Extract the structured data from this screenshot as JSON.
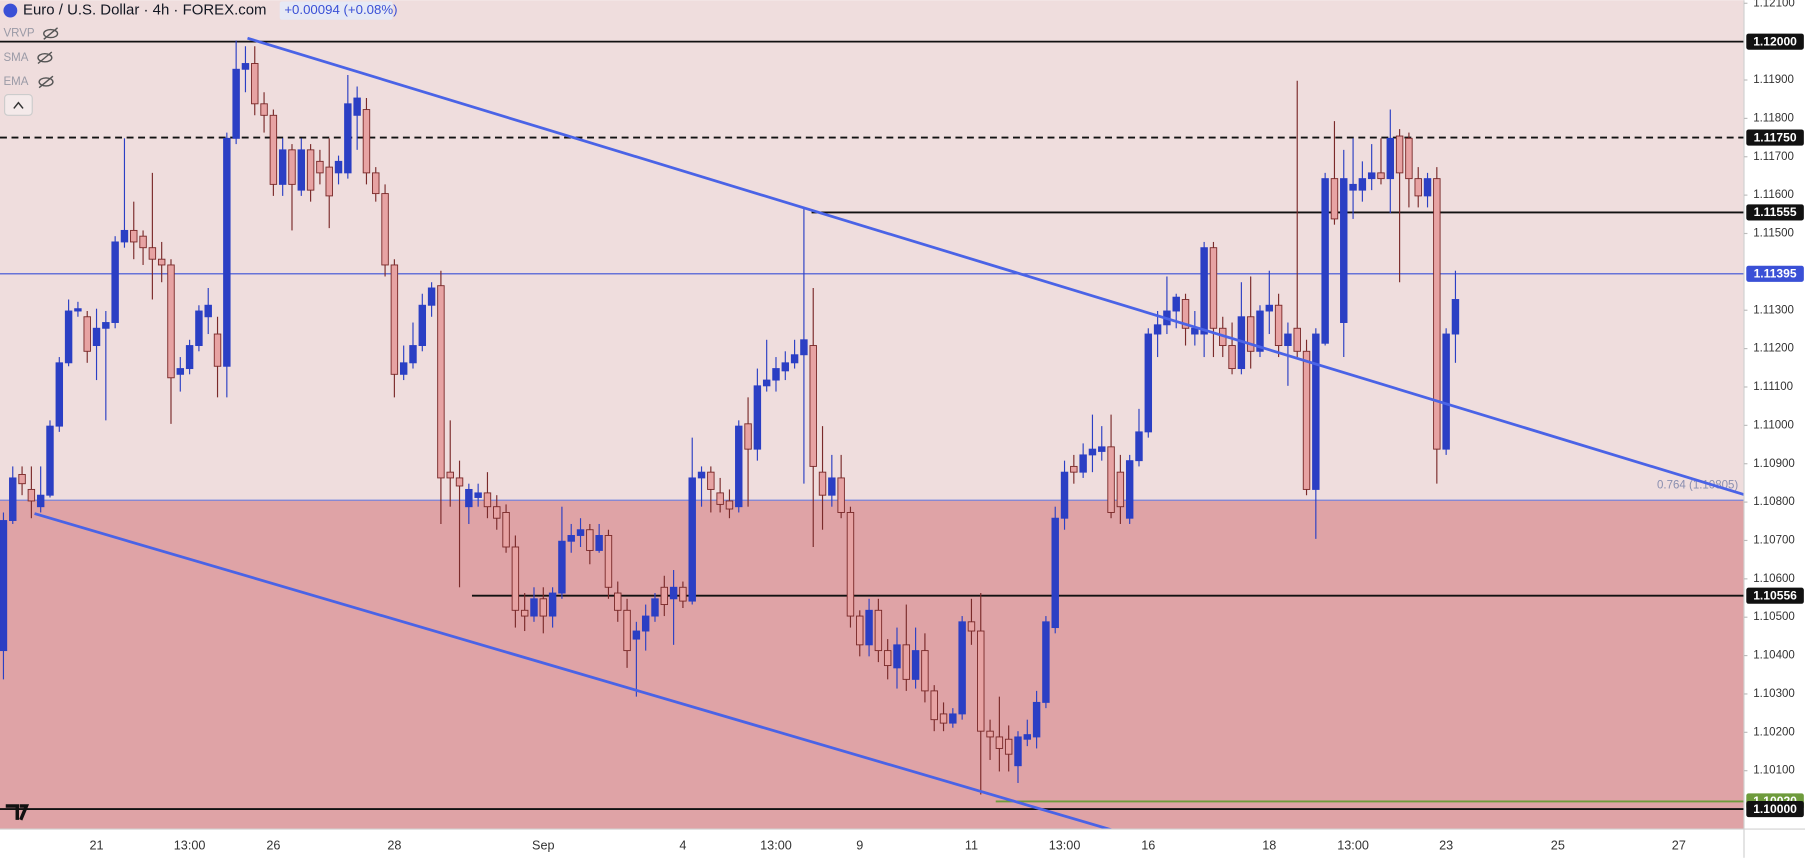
{
  "header": {
    "title": "Euro / U.S. Dollar · 4h · FOREX.com",
    "change": "+0.00094 (+0.08%)",
    "indicators": [
      "VRVP",
      "SMA",
      "EMA"
    ]
  },
  "chart_data": {
    "type": "candlestick",
    "up_color": "#2b3fc4",
    "down_color": "#e7a3a3",
    "down_edge": "#7a2a2a",
    "ylim": [
      1.09948,
      1.12108
    ],
    "yticks": [
      {
        "value": 1.121,
        "label": "1.12100"
      },
      {
        "value": 1.119,
        "label": "1.11900"
      },
      {
        "value": 1.118,
        "label": "1.11800"
      },
      {
        "value": 1.117,
        "label": "1.11700"
      },
      {
        "value": 1.116,
        "label": "1.11600"
      },
      {
        "value": 1.115,
        "label": "1.11500"
      },
      {
        "value": 1.113,
        "label": "1.11300"
      },
      {
        "value": 1.112,
        "label": "1.11200"
      },
      {
        "value": 1.111,
        "label": "1.11100"
      },
      {
        "value": 1.11,
        "label": "1.11000"
      },
      {
        "value": 1.109,
        "label": "1.10900"
      },
      {
        "value": 1.108,
        "label": "1.10800"
      },
      {
        "value": 1.107,
        "label": "1.10700"
      },
      {
        "value": 1.106,
        "label": "1.10600"
      },
      {
        "value": 1.105,
        "label": "1.10500"
      },
      {
        "value": 1.104,
        "label": "1.10400"
      },
      {
        "value": 1.103,
        "label": "1.10300"
      },
      {
        "value": 1.102,
        "label": "1.10200"
      },
      {
        "value": 1.101,
        "label": "1.10100"
      }
    ],
    "levels": [
      {
        "value": 1.12,
        "label": "1.12000",
        "color": "#111111",
        "style": "solid"
      },
      {
        "value": 1.1175,
        "label": "1.11750",
        "color": "#111111",
        "style": "dashed"
      },
      {
        "value": 1.11555,
        "label": "1.11555",
        "color": "#111111",
        "style": "solid"
      },
      {
        "value": 1.11395,
        "label": "1.11395",
        "color": "#3a50d6",
        "style": "solid"
      },
      {
        "value": 1.10556,
        "label": "1.10556",
        "color": "#111111",
        "style": "solid"
      },
      {
        "value": 1.1002,
        "label": "1.10020",
        "color": "#6e9b3c",
        "style": "solid"
      },
      {
        "value": 1.1,
        "label": "1.10000",
        "color": "#111111",
        "style": "solid"
      }
    ],
    "zone": {
      "value": 1.10805,
      "label": "0.764 (1.10805)",
      "color": "#dfa3a6",
      "above_color": "#efdddd"
    },
    "categories": [
      null,
      null,
      null,
      null,
      null,
      null,
      null,
      null,
      null,
      null,
      "21",
      null,
      null,
      null,
      null,
      null,
      null,
      null,
      null,
      null,
      "13:00",
      null,
      null,
      null,
      null,
      null,
      null,
      null,
      null,
      "26",
      null,
      null,
      null,
      null,
      null,
      null,
      null,
      null,
      null,
      null,
      null,
      null,
      "28",
      null,
      null,
      null,
      null,
      null,
      null,
      null,
      null,
      null,
      null,
      null,
      null,
      null,
      null,
      null,
      "Sep",
      null,
      null,
      null,
      null,
      null,
      null,
      null,
      null,
      null,
      null,
      null,
      null,
      null,
      null,
      "4",
      null,
      null,
      null,
      null,
      null,
      null,
      null,
      null,
      null,
      "13:00",
      null,
      null,
      null,
      null,
      null,
      null,
      null,
      null,
      "9",
      null,
      null,
      null,
      null,
      null,
      null,
      null,
      null,
      null,
      null,
      null,
      "11",
      null,
      null,
      null,
      null,
      null,
      null,
      null,
      null,
      null,
      "13:00",
      null,
      null,
      null,
      null,
      null,
      null,
      null,
      null,
      "16",
      null,
      null,
      null,
      null,
      null,
      null,
      null,
      null,
      null,
      null,
      null,
      null,
      "18",
      null,
      null,
      null,
      null,
      null,
      null,
      null,
      null,
      "13:00",
      null,
      null,
      null,
      null,
      null,
      null,
      null,
      null,
      null,
      "23",
      null,
      null,
      null,
      null,
      null,
      null,
      null,
      null,
      null,
      null,
      null,
      "25",
      null,
      null,
      null,
      null,
      null,
      null,
      null,
      null,
      null,
      null,
      null,
      null,
      "27",
      null,
      null,
      null,
      null,
      null,
      null,
      null
    ],
    "ohlc": [
      [
        1.10413,
        1.10773,
        1.10338,
        1.10752
      ],
      [
        1.10752,
        1.10893,
        1.10743,
        1.10863
      ],
      [
        1.10872,
        1.10893,
        1.10818,
        1.10848
      ],
      [
        1.10833,
        1.10893,
        1.10758,
        1.10803
      ],
      [
        1.10788,
        1.10893,
        1.10773,
        1.10818
      ],
      [
        1.10818,
        1.11013,
        1.10812,
        1.10998
      ],
      [
        1.10998,
        1.11178,
        1.10983,
        1.11163
      ],
      [
        1.11163,
        1.11328,
        1.11154,
        1.11298
      ],
      [
        1.11298,
        1.11322,
        1.11283,
        1.11304
      ],
      [
        1.11283,
        1.11298,
        1.11163,
        1.11193
      ],
      [
        1.11208,
        1.11304,
        1.11118,
        1.11253
      ],
      [
        1.11253,
        1.11298,
        1.11013,
        1.11268
      ],
      [
        1.11268,
        1.11493,
        1.11253,
        1.11478
      ],
      [
        1.11478,
        1.11748,
        1.11463,
        1.11508
      ],
      [
        1.11508,
        1.11583,
        1.11433,
        1.11478
      ],
      [
        1.11493,
        1.11508,
        1.11418,
        1.11463
      ],
      [
        1.11463,
        1.11658,
        1.11328,
        1.11433
      ],
      [
        1.11433,
        1.11478,
        1.11373,
        1.11418
      ],
      [
        1.11418,
        1.11433,
        1.11004,
        1.11124
      ],
      [
        1.11133,
        1.11178,
        1.11088,
        1.11148
      ],
      [
        1.11148,
        1.11223,
        1.11133,
        1.11208
      ],
      [
        1.11208,
        1.11313,
        1.11193,
        1.11298
      ],
      [
        1.11283,
        1.11358,
        1.11238,
        1.11313
      ],
      [
        1.11238,
        1.11283,
        1.11073,
        1.11154
      ],
      [
        1.11154,
        1.11763,
        1.11073,
        1.11748
      ],
      [
        1.11748,
        1.12003,
        1.11733,
        1.11928
      ],
      [
        1.11928,
        1.11988,
        1.11868,
        1.11943
      ],
      [
        1.11943,
        1.11988,
        1.11808,
        1.11838
      ],
      [
        1.11838,
        1.11868,
        1.11763,
        1.11808
      ],
      [
        1.11808,
        1.11823,
        1.11598,
        1.11628
      ],
      [
        1.11628,
        1.11748,
        1.11598,
        1.11718
      ],
      [
        1.11718,
        1.11733,
        1.11508,
        1.11628
      ],
      [
        1.11613,
        1.11748,
        1.11598,
        1.11718
      ],
      [
        1.11718,
        1.11733,
        1.11583,
        1.11613
      ],
      [
        1.11688,
        1.11718,
        1.11628,
        1.11658
      ],
      [
        1.11673,
        1.11748,
        1.11514,
        1.11598
      ],
      [
        1.11658,
        1.11703,
        1.11628,
        1.11688
      ],
      [
        1.11658,
        1.11913,
        1.11643,
        1.11838
      ],
      [
        1.11808,
        1.11883,
        1.11718,
        1.11853
      ],
      [
        1.11823,
        1.11853,
        1.11628,
        1.11658
      ],
      [
        1.11658,
        1.11673,
        1.11583,
        1.11604
      ],
      [
        1.11604,
        1.11628,
        1.11388,
        1.11418
      ],
      [
        1.11418,
        1.11433,
        1.11073,
        1.11133
      ],
      [
        1.11133,
        1.11208,
        1.11118,
        1.11163
      ],
      [
        1.11163,
        1.11268,
        1.11148,
        1.11208
      ],
      [
        1.11208,
        1.11343,
        1.11193,
        1.11313
      ],
      [
        1.11313,
        1.11373,
        1.11283,
        1.11358
      ],
      [
        1.11364,
        1.11403,
        1.10743,
        1.10863
      ],
      [
        1.10878,
        1.11013,
        1.10788,
        1.10863
      ],
      [
        1.10863,
        1.10908,
        1.10578,
        1.10842
      ],
      [
        1.10788,
        1.10848,
        1.10743,
        1.10833
      ],
      [
        1.10812,
        1.10848,
        1.10788,
        1.10824
      ],
      [
        1.10824,
        1.10878,
        1.10758,
        1.10788
      ],
      [
        1.10788,
        1.10818,
        1.10728,
        1.10758
      ],
      [
        1.10773,
        1.10794,
        1.10668,
        1.10683
      ],
      [
        1.10683,
        1.10713,
        1.10473,
        1.10518
      ],
      [
        1.10518,
        1.10563,
        1.10464,
        1.10503
      ],
      [
        1.10503,
        1.10578,
        1.10488,
        1.10548
      ],
      [
        1.10548,
        1.10578,
        1.10458,
        1.10503
      ],
      [
        1.10503,
        1.10578,
        1.10473,
        1.10563
      ],
      [
        1.10563,
        1.10788,
        1.10548,
        1.10698
      ],
      [
        1.10698,
        1.10743,
        1.10668,
        1.10713
      ],
      [
        1.10713,
        1.10758,
        1.10683,
        1.10728
      ],
      [
        1.10728,
        1.10743,
        1.10638,
        1.10674
      ],
      [
        1.10674,
        1.10743,
        1.10668,
        1.10713
      ],
      [
        1.10713,
        1.10728,
        1.10548,
        1.10578
      ],
      [
        1.10563,
        1.10593,
        1.10488,
        1.10518
      ],
      [
        1.10518,
        1.10548,
        1.10368,
        1.10413
      ],
      [
        1.10443,
        1.10488,
        1.10293,
        1.10464
      ],
      [
        1.10464,
        1.10533,
        1.10413,
        1.10503
      ],
      [
        1.10503,
        1.10563,
        1.10488,
        1.10548
      ],
      [
        1.10578,
        1.10608,
        1.10503,
        1.10533
      ],
      [
        1.10548,
        1.10623,
        1.10428,
        1.10578
      ],
      [
        1.10578,
        1.10593,
        1.10524,
        1.10542
      ],
      [
        1.10542,
        1.10968,
        1.10533,
        1.10863
      ],
      [
        1.10863,
        1.10893,
        1.10788,
        1.10878
      ],
      [
        1.10878,
        1.10893,
        1.10773,
        1.10833
      ],
      [
        1.10824,
        1.10863,
        1.10773,
        1.10794
      ],
      [
        1.10803,
        1.10833,
        1.10758,
        1.10782
      ],
      [
        1.10788,
        1.11013,
        1.10773,
        1.10998
      ],
      [
        1.11004,
        1.11073,
        1.10788,
        1.10938
      ],
      [
        1.10938,
        1.11148,
        1.10908,
        1.11103
      ],
      [
        1.11103,
        1.11223,
        1.11088,
        1.11118
      ],
      [
        1.11118,
        1.11178,
        1.11088,
        1.11148
      ],
      [
        1.11142,
        1.11193,
        1.11118,
        1.11163
      ],
      [
        1.11163,
        1.11223,
        1.11148,
        1.11184
      ],
      [
        1.11184,
        1.11568,
        1.10848,
        1.11223
      ],
      [
        1.11208,
        1.11358,
        1.10683,
        1.10893
      ],
      [
        1.10878,
        1.10998,
        1.10728,
        1.10818
      ],
      [
        1.10818,
        1.10923,
        1.10788,
        1.10863
      ],
      [
        1.10863,
        1.10923,
        1.10758,
        1.10773
      ],
      [
        1.10773,
        1.10788,
        1.10473,
        1.10503
      ],
      [
        1.10503,
        1.10518,
        1.10398,
        1.10428
      ],
      [
        1.10428,
        1.10548,
        1.10398,
        1.10518
      ],
      [
        1.10518,
        1.10548,
        1.10383,
        1.10413
      ],
      [
        1.10413,
        1.10443,
        1.10338,
        1.10374
      ],
      [
        1.10368,
        1.10473,
        1.10314,
        1.10428
      ],
      [
        1.10428,
        1.10533,
        1.10308,
        1.10338
      ],
      [
        1.10338,
        1.10473,
        1.10314,
        1.10413
      ],
      [
        1.10413,
        1.10458,
        1.10278,
        1.10308
      ],
      [
        1.10308,
        1.10323,
        1.10203,
        1.10233
      ],
      [
        1.10248,
        1.10278,
        1.10203,
        1.10224
      ],
      [
        1.10224,
        1.10263,
        1.10212,
        1.10248
      ],
      [
        1.10248,
        1.10503,
        1.10233,
        1.10488
      ],
      [
        1.10488,
        1.10548,
        1.10428,
        1.10464
      ],
      [
        1.10464,
        1.10563,
        1.10038,
        1.10203
      ],
      [
        1.10203,
        1.10233,
        1.10128,
        1.10188
      ],
      [
        1.10188,
        1.10293,
        1.10098,
        1.10158
      ],
      [
        1.10182,
        1.10218,
        1.10098,
        1.10143
      ],
      [
        1.10113,
        1.10203,
        1.10068,
        1.10188
      ],
      [
        1.10182,
        1.10233,
        1.10164,
        1.10194
      ],
      [
        1.10188,
        1.10308,
        1.10158,
        1.10278
      ],
      [
        1.10278,
        1.10503,
        1.10263,
        1.10488
      ],
      [
        1.10473,
        1.10788,
        1.10458,
        1.10758
      ],
      [
        1.10758,
        1.10908,
        1.10728,
        1.10878
      ],
      [
        1.10893,
        1.10923,
        1.10848,
        1.10878
      ],
      [
        1.10878,
        1.10953,
        1.10863,
        1.10923
      ],
      [
        1.10923,
        1.11028,
        1.10878,
        1.10938
      ],
      [
        1.10932,
        1.10998,
        1.10908,
        1.10944
      ],
      [
        1.10944,
        1.11028,
        1.10758,
        1.10773
      ],
      [
        1.10878,
        1.10923,
        1.10743,
        1.10788
      ],
      [
        1.10758,
        1.10923,
        1.10743,
        1.10908
      ],
      [
        1.10908,
        1.11043,
        1.10893,
        1.10983
      ],
      [
        1.10983,
        1.11253,
        1.10968,
        1.11238
      ],
      [
        1.11238,
        1.11298,
        1.11178,
        1.11262
      ],
      [
        1.11262,
        1.11388,
        1.11238,
        1.11298
      ],
      [
        1.11298,
        1.11343,
        1.11253,
        1.11334
      ],
      [
        1.11328,
        1.11343,
        1.11208,
        1.11253
      ],
      [
        1.11238,
        1.11298,
        1.11208,
        1.11253
      ],
      [
        1.11238,
        1.11478,
        1.11178,
        1.11463
      ],
      [
        1.11463,
        1.11478,
        1.11178,
        1.11253
      ],
      [
        1.11253,
        1.11283,
        1.11178,
        1.11208
      ],
      [
        1.11208,
        1.11268,
        1.11133,
        1.11148
      ],
      [
        1.11148,
        1.11373,
        1.11133,
        1.11283
      ],
      [
        1.11283,
        1.11388,
        1.11148,
        1.11193
      ],
      [
        1.11193,
        1.11313,
        1.11178,
        1.11298
      ],
      [
        1.11298,
        1.11403,
        1.11238,
        1.11313
      ],
      [
        1.11313,
        1.11343,
        1.11178,
        1.11208
      ],
      [
        1.11208,
        1.11268,
        1.11103,
        1.11238
      ],
      [
        1.11253,
        1.11898,
        1.11178,
        1.11193
      ],
      [
        1.11193,
        1.11223,
        1.10818,
        1.10833
      ],
      [
        1.10833,
        1.11253,
        1.10704,
        1.11238
      ],
      [
        1.11214,
        1.11658,
        1.11208,
        1.11643
      ],
      [
        1.11643,
        1.11793,
        1.11523,
        1.11538
      ],
      [
        1.11268,
        1.11718,
        1.11178,
        1.11643
      ],
      [
        1.11613,
        1.11748,
        1.11538,
        1.11628
      ],
      [
        1.11613,
        1.11688,
        1.11583,
        1.11643
      ],
      [
        1.11643,
        1.11733,
        1.11613,
        1.11658
      ],
      [
        1.11658,
        1.11748,
        1.11628,
        1.11643
      ],
      [
        1.11643,
        1.11823,
        1.11553,
        1.11748
      ],
      [
        1.11754,
        1.11772,
        1.11373,
        1.11658
      ],
      [
        1.11748,
        1.11763,
        1.11568,
        1.11643
      ],
      [
        1.11643,
        1.11673,
        1.11568,
        1.11598
      ],
      [
        1.11598,
        1.11658,
        1.11568,
        1.11643
      ],
      [
        1.11643,
        1.11673,
        1.10848,
        1.10938
      ],
      [
        1.10938,
        1.11253,
        1.10923,
        1.11238
      ],
      [
        1.11238,
        1.11403,
        1.11163,
        1.11328
      ],
      null,
      null,
      null,
      null,
      null,
      null,
      null,
      null,
      null,
      null,
      null,
      null,
      null,
      null,
      null,
      null,
      null,
      null,
      null,
      null,
      null,
      null,
      null,
      null,
      null,
      null,
      null,
      null,
      null,
      null,
      null
    ]
  }
}
